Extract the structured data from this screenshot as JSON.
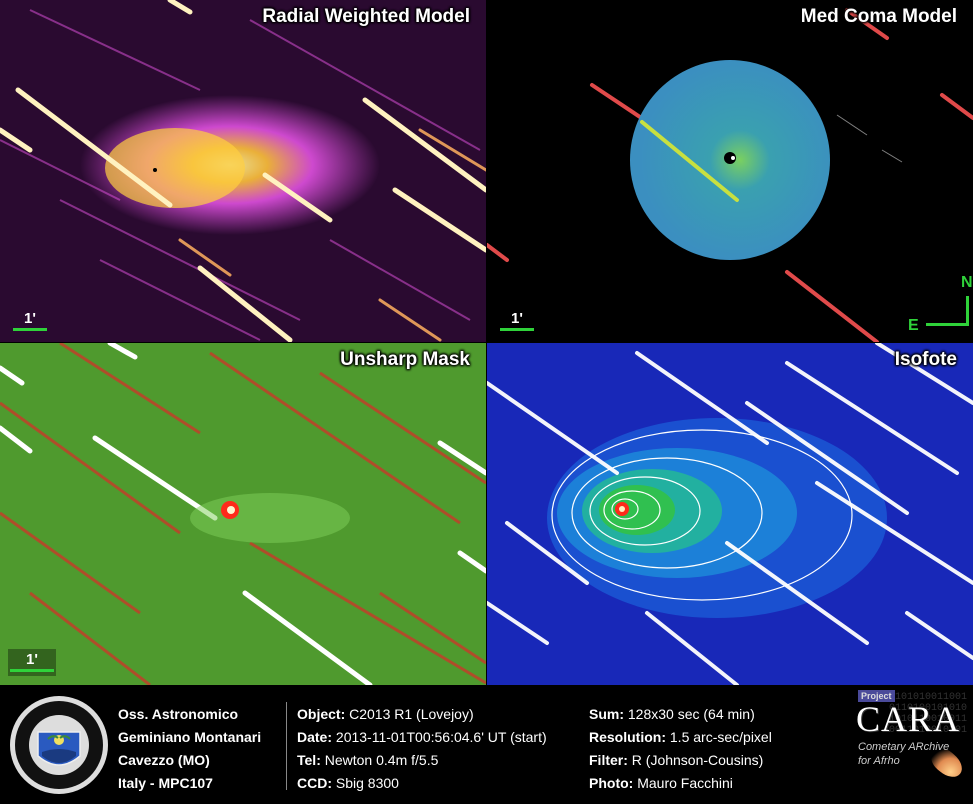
{
  "panels": {
    "radial": {
      "title": "Radial Weighted Model",
      "scale_label": "1'"
    },
    "medcoma": {
      "title": "Med Coma Model",
      "scale_label": "1'",
      "compass_n": "N",
      "compass_e": "E"
    },
    "unsharp": {
      "title": "Unsharp Mask",
      "scale_label": "1'"
    },
    "isofote": {
      "title": "Isofote"
    }
  },
  "footer": {
    "observatory": {
      "line1": "Oss. Astronomico",
      "line2": "Geminiano Montanari",
      "line3": "Cavezzo (MO)",
      "line4": "Italy - MPC107"
    },
    "logo_text": "OSSERVATORIO ASTRONOMICO G. MONTANARI CAVEZZO MO",
    "details": {
      "object_label": "Object:",
      "object_value": "C2013 R1 (Lovejoy)",
      "date_label": "Date:",
      "date_value": "2013-11-01T00:56:04.6' UT (start)",
      "tel_label": "Tel:",
      "tel_value": "Newton 0.4m f/5.5",
      "ccd_label": "CCD:",
      "ccd_value": "Sbig 8300"
    },
    "exposure": {
      "sum_label": "Sum:",
      "sum_value": "128x30 sec (64 min)",
      "res_label": "Resolution:",
      "res_value": "1.5 arc-sec/pixel",
      "filter_label": "Filter:",
      "filter_value": "R (Johnson-Cousins)",
      "photo_label": "Photo:",
      "photo_value": "Mauro Facchini"
    },
    "cara": {
      "project": "Project",
      "name": "CARA",
      "sub1": "Cometary ARchive",
      "sub2": "for Afrho",
      "binary": "1101010011001\n0110100101010\n1010110010011\n0011010010101"
    }
  },
  "colors": {
    "radial_bg": "#2a0a30",
    "radial_coma": "#ffd24a",
    "medcoma_disk": "#3b8fc0",
    "unsharp_bg": "#4a8a2a",
    "isofote_bg": "#1020a8",
    "accent_green": "#2fd23a"
  }
}
